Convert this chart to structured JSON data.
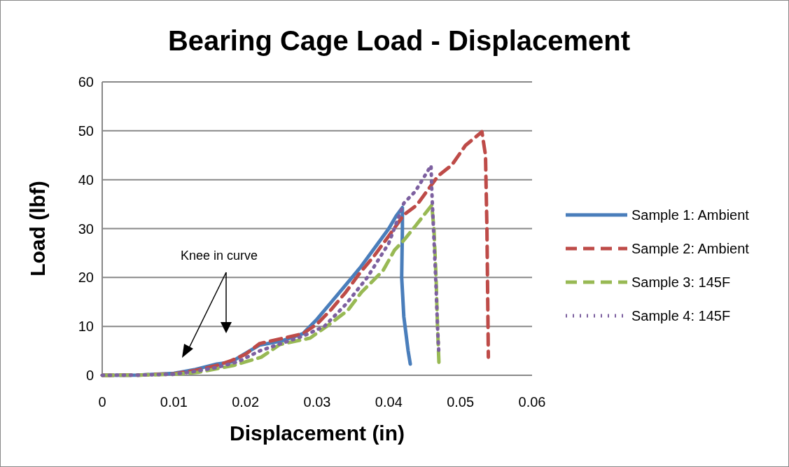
{
  "chart_data": {
    "type": "line",
    "title": "Bearing Cage Load - Displacement",
    "xlabel": "Displacement (in)",
    "ylabel": "Load (lbf)",
    "xlim": [
      0,
      0.06
    ],
    "xticks": [
      0,
      0.01,
      0.02,
      0.03,
      0.04,
      0.05,
      0.06
    ],
    "ylim": [
      0,
      60
    ],
    "yticks": [
      0,
      10,
      20,
      30,
      40,
      50,
      60
    ],
    "grid": "y",
    "legend": "right",
    "marker": "none",
    "annotations": [
      "Knee in curve"
    ],
    "series": [
      {
        "name": "Sample 1: Ambient",
        "color": "#4a7ebb",
        "line_style": "solid",
        "x": [
          0,
          0.005,
          0.01,
          0.013,
          0.016,
          0.018,
          0.02,
          0.022,
          0.025,
          0.028,
          0.03,
          0.032,
          0.034,
          0.036,
          0.038,
          0.04,
          0.041,
          0.0419,
          0.0419,
          0.0418,
          0.0421,
          0.0427,
          0.043
        ],
        "values": [
          0,
          0.05,
          0.4,
          1.2,
          2.3,
          2.7,
          4.5,
          6.2,
          7,
          8.5,
          11.5,
          15,
          18.5,
          22,
          26,
          30,
          32.5,
          34.3,
          30,
          20,
          12,
          5,
          2.3
        ]
      },
      {
        "name": "Sample 2: Ambient",
        "color": "#be4b48",
        "line_style": "dashed",
        "x": [
          0,
          0.005,
          0.01,
          0.013,
          0.016,
          0.018,
          0.02,
          0.022,
          0.025,
          0.028,
          0.03,
          0.032,
          0.034,
          0.036,
          0.038,
          0.04,
          0.0421,
          0.0439,
          0.0457,
          0.0469,
          0.0488,
          0.0507,
          0.053,
          0.0535,
          0.0537,
          0.0539
        ],
        "values": [
          0,
          0.05,
          0.3,
          1,
          2,
          3,
          4.3,
          6.5,
          7.5,
          8.5,
          10.5,
          13.5,
          17,
          21,
          24.5,
          28.5,
          32.8,
          34.8,
          38.4,
          40.8,
          43,
          47,
          49.8,
          45,
          30,
          3.7
        ]
      },
      {
        "name": "Sample 3: 145F",
        "color": "#98b954",
        "line_style": "dashed",
        "x": [
          0,
          0.005,
          0.01,
          0.0134,
          0.0183,
          0.0222,
          0.0248,
          0.029,
          0.0317,
          0.0343,
          0.0362,
          0.0392,
          0.0408,
          0.0421,
          0.0437,
          0.046,
          0.0463,
          0.0466,
          0.0468,
          0.047
        ],
        "values": [
          0,
          0.05,
          0.2,
          0.6,
          2,
          3.7,
          6.3,
          7.6,
          10.4,
          13.3,
          17,
          21.4,
          25.6,
          27.6,
          30.5,
          34.8,
          30,
          20,
          10,
          2.6
        ]
      },
      {
        "name": "Sample 4: 145F",
        "color": "#7d60a0",
        "line_style": "dotted",
        "x": [
          0,
          0.005,
          0.01,
          0.013,
          0.016,
          0.019,
          0.022,
          0.025,
          0.028,
          0.031,
          0.034,
          0.037,
          0.04,
          0.0421,
          0.0437,
          0.0459,
          0.046,
          0.0463,
          0.0466,
          0.0468,
          0.047
        ],
        "values": [
          0,
          0.05,
          0.2,
          0.8,
          1.6,
          2.8,
          5,
          6.5,
          8,
          10,
          14.5,
          20,
          27,
          35.2,
          37.6,
          42.9,
          38,
          28,
          18,
          10,
          4.2
        ]
      }
    ]
  }
}
